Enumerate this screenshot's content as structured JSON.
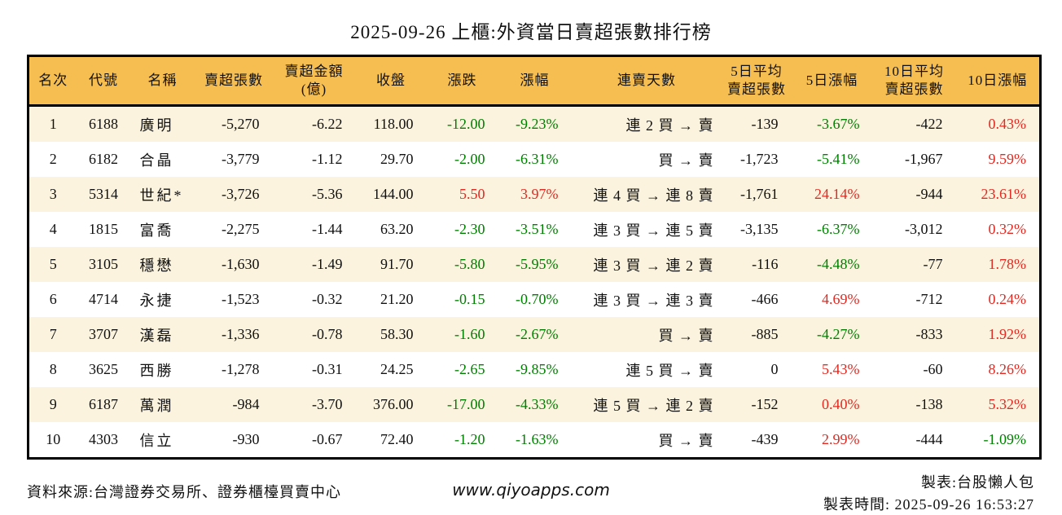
{
  "title": "2025-09-26 上櫃:外資當日賣超張數排行榜",
  "chart_data": {
    "type": "table",
    "columns": [
      "名次",
      "代號",
      "名稱",
      "賣超張數",
      "賣超金額\n(億)",
      "收盤",
      "漲跌",
      "漲幅",
      "連賣天數",
      "5日平均\n賣超張數",
      "5日漲幅",
      "10日平均\n賣超張數",
      "10日漲幅"
    ],
    "rows": [
      {
        "rank": "1",
        "code": "6188",
        "name": "廣明",
        "sell_volume": "-5,270",
        "sell_amount": "-6.22",
        "close": "118.00",
        "change": "-12.00",
        "change_pct": "-9.23%",
        "change_dir": "down",
        "streak": "連 2 買 → 賣",
        "avg5": "-139",
        "pct5": "-3.67%",
        "pct5_dir": "down",
        "avg10": "-422",
        "pct10": "0.43%",
        "pct10_dir": "up"
      },
      {
        "rank": "2",
        "code": "6182",
        "name": "合晶",
        "sell_volume": "-3,779",
        "sell_amount": "-1.12",
        "close": "29.70",
        "change": "-2.00",
        "change_pct": "-6.31%",
        "change_dir": "down",
        "streak": "買 → 賣",
        "avg5": "-1,723",
        "pct5": "-5.41%",
        "pct5_dir": "down",
        "avg10": "-1,967",
        "pct10": "9.59%",
        "pct10_dir": "up"
      },
      {
        "rank": "3",
        "code": "5314",
        "name": "世紀*",
        "sell_volume": "-3,726",
        "sell_amount": "-5.36",
        "close": "144.00",
        "change": "5.50",
        "change_pct": "3.97%",
        "change_dir": "up",
        "streak": "連 4 買 → 連 8 賣",
        "avg5": "-1,761",
        "pct5": "24.14%",
        "pct5_dir": "up",
        "avg10": "-944",
        "pct10": "23.61%",
        "pct10_dir": "up"
      },
      {
        "rank": "4",
        "code": "1815",
        "name": "富喬",
        "sell_volume": "-2,275",
        "sell_amount": "-1.44",
        "close": "63.20",
        "change": "-2.30",
        "change_pct": "-3.51%",
        "change_dir": "down",
        "streak": "連 3 買 → 連 5 賣",
        "avg5": "-3,135",
        "pct5": "-6.37%",
        "pct5_dir": "down",
        "avg10": "-3,012",
        "pct10": "0.32%",
        "pct10_dir": "up"
      },
      {
        "rank": "5",
        "code": "3105",
        "name": "穩懋",
        "sell_volume": "-1,630",
        "sell_amount": "-1.49",
        "close": "91.70",
        "change": "-5.80",
        "change_pct": "-5.95%",
        "change_dir": "down",
        "streak": "連 3 買 → 連 2 賣",
        "avg5": "-116",
        "pct5": "-4.48%",
        "pct5_dir": "down",
        "avg10": "-77",
        "pct10": "1.78%",
        "pct10_dir": "up"
      },
      {
        "rank": "6",
        "code": "4714",
        "name": "永捷",
        "sell_volume": "-1,523",
        "sell_amount": "-0.32",
        "close": "21.20",
        "change": "-0.15",
        "change_pct": "-0.70%",
        "change_dir": "down",
        "streak": "連 3 買 → 連 3 賣",
        "avg5": "-466",
        "pct5": "4.69%",
        "pct5_dir": "up",
        "avg10": "-712",
        "pct10": "0.24%",
        "pct10_dir": "up"
      },
      {
        "rank": "7",
        "code": "3707",
        "name": "漢磊",
        "sell_volume": "-1,336",
        "sell_amount": "-0.78",
        "close": "58.30",
        "change": "-1.60",
        "change_pct": "-2.67%",
        "change_dir": "down",
        "streak": "買 → 賣",
        "avg5": "-885",
        "pct5": "-4.27%",
        "pct5_dir": "down",
        "avg10": "-833",
        "pct10": "1.92%",
        "pct10_dir": "up"
      },
      {
        "rank": "8",
        "code": "3625",
        "name": "西勝",
        "sell_volume": "-1,278",
        "sell_amount": "-0.31",
        "close": "24.25",
        "change": "-2.65",
        "change_pct": "-9.85%",
        "change_dir": "down",
        "streak": "連 5 買 → 賣",
        "avg5": "0",
        "pct5": "5.43%",
        "pct5_dir": "up",
        "avg10": "-60",
        "pct10": "8.26%",
        "pct10_dir": "up"
      },
      {
        "rank": "9",
        "code": "6187",
        "name": "萬潤",
        "sell_volume": "-984",
        "sell_amount": "-3.70",
        "close": "376.00",
        "change": "-17.00",
        "change_pct": "-4.33%",
        "change_dir": "down",
        "streak": "連 5 買 → 連 2 賣",
        "avg5": "-152",
        "pct5": "0.40%",
        "pct5_dir": "up",
        "avg10": "-138",
        "pct10": "5.32%",
        "pct10_dir": "up"
      },
      {
        "rank": "10",
        "code": "4303",
        "name": "信立",
        "sell_volume": "-930",
        "sell_amount": "-0.67",
        "close": "72.40",
        "change": "-1.20",
        "change_pct": "-1.63%",
        "change_dir": "down",
        "streak": "買 → 賣",
        "avg5": "-439",
        "pct5": "2.99%",
        "pct5_dir": "up",
        "avg10": "-444",
        "pct10": "-1.09%",
        "pct10_dir": "down"
      }
    ]
  },
  "footer": {
    "source": "資料來源:台灣證券交易所、證券櫃檯買賣中心",
    "website": "www.qiyoapps.com",
    "maker": "製表:台股懶人包",
    "made_at": "製表時間: 2025-09-26 16:53:27"
  },
  "colors": {
    "header_bg": "#f6be51",
    "row_alt_bg": "#fbf3de",
    "up_red": "#e02a22",
    "down_green": "#008000",
    "border": "#000000"
  }
}
